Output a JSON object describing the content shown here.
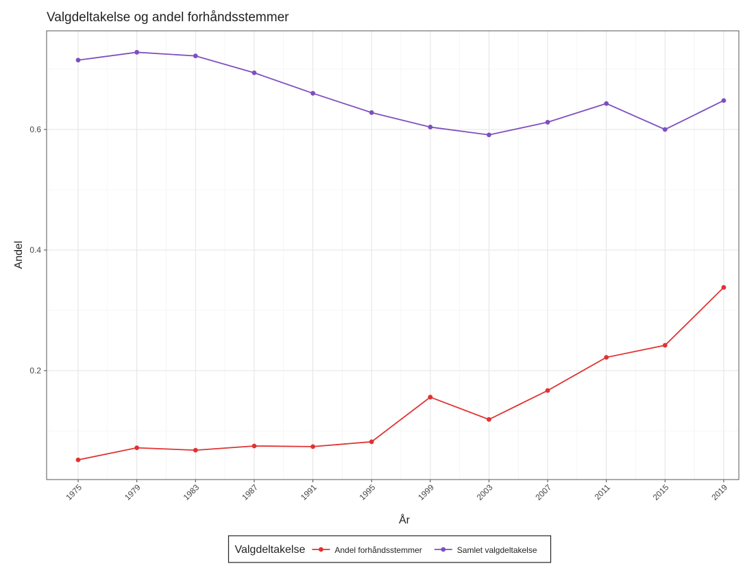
{
  "chart_data": {
    "type": "line",
    "title": "Valgdeltakelse og andel forhåndsstemmer",
    "x_label": "År",
    "y_label": "Andel",
    "x": [
      1975,
      1979,
      1983,
      1987,
      1991,
      1995,
      1999,
      2003,
      2007,
      2011,
      2015,
      2019
    ],
    "series": [
      {
        "name": "Andel forhåndsstemmer",
        "color": "#e03232",
        "values": [
          0.052,
          0.072,
          0.068,
          0.075,
          0.074,
          0.082,
          0.156,
          0.119,
          0.167,
          0.222,
          0.242,
          0.338
        ]
      },
      {
        "name": "Samlet valgdeltakelse",
        "color": "#7e4fbf",
        "values": [
          0.715,
          0.728,
          0.722,
          0.694,
          0.66,
          0.628,
          0.604,
          0.591,
          0.612,
          0.643,
          0.6,
          0.648
        ]
      }
    ],
    "xlim": [
      1972.85,
      2020.03
    ],
    "ylim": [
      0.0193,
      0.7636
    ],
    "xticks": [
      1975,
      1979,
      1983,
      1987,
      1991,
      1995,
      1999,
      2003,
      2007,
      2011,
      2015,
      2019
    ],
    "yticks": [
      0.2,
      0.4,
      0.6
    ],
    "grid": true,
    "legend_title": "Valgdeltakelse",
    "legend_position": "bottom"
  }
}
